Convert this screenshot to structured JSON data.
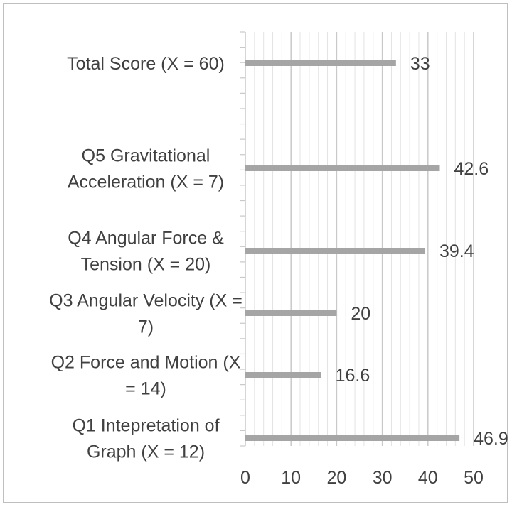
{
  "chart_data": {
    "type": "bar",
    "orientation": "horizontal",
    "categories": [
      [
        "Total Score (X = 60)"
      ],
      [],
      [
        "Q5 Gravitational",
        "Acceleration (X = 7)"
      ],
      [
        "Q4 Angular Force &",
        "Tension (X = 20)"
      ],
      [
        "Q3 Angular Velocity (X =",
        "7)"
      ],
      [
        "Q2 Force and Motion (X",
        "= 14)"
      ],
      [
        "Q1 Intepretation of",
        "Graph (X = 12)"
      ]
    ],
    "values": [
      33,
      null,
      42.6,
      39.4,
      20,
      16.6,
      46.9
    ],
    "data_labels": [
      "33",
      "",
      "42.6",
      "39.4",
      "20",
      "16.6",
      "46.9"
    ],
    "x_ticks": [
      "0",
      "10",
      "20",
      "30",
      "40",
      "50"
    ],
    "xlim": [
      0,
      50
    ],
    "minor_step": 2,
    "grid": "vertical",
    "title": "",
    "xlabel": "",
    "ylabel": "",
    "colors": {
      "bar": "#a5a5a5",
      "major_grid": "#c9c9c9",
      "minor_grid": "#e3e3e3",
      "axis": "#c9c9c9",
      "text": "#404040"
    }
  }
}
